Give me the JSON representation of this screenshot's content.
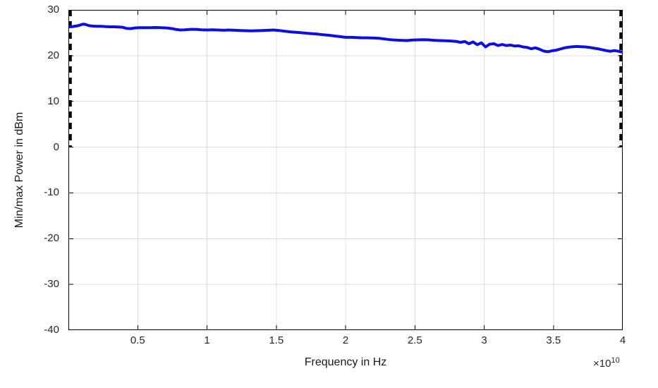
{
  "figure": {
    "background": "#ffffff"
  },
  "chart_data": {
    "type": "line",
    "title": "",
    "xlabel": "Frequency in Hz",
    "ylabel": "Min/max Power in dBm",
    "x_multiplier": {
      "base": "×10",
      "exponent": "10"
    },
    "x_units_note": "x values are in units of 1e10 Hz",
    "xlim": [
      0,
      4
    ],
    "ylim": [
      -40,
      30
    ],
    "xticks": [
      0.5,
      1,
      1.5,
      2,
      2.5,
      3,
      3.5,
      4
    ],
    "xtick_labels": [
      "0.5",
      "1",
      "1.5",
      "2",
      "2.5",
      "3",
      "3.5",
      "4"
    ],
    "yticks": [
      30,
      20,
      10,
      0,
      -10,
      -20,
      -30,
      -40
    ],
    "ytick_labels": [
      "30",
      "20",
      "10",
      "0",
      "-10",
      "-20",
      "-30",
      "-40"
    ],
    "grid": true,
    "legend": null,
    "colors": {
      "line": "#0D0DE8",
      "grid": "#DCDCDC",
      "axis": "#000000",
      "text": "#262626"
    },
    "markers": [
      {
        "type": "vline",
        "x": 0.0,
        "y_from": 0,
        "y_to": 30,
        "style": "dashed",
        "color": "#000000"
      },
      {
        "type": "vline",
        "x": 4.0,
        "y_from": 0,
        "y_to": 30,
        "style": "dashed",
        "color": "#000000"
      }
    ],
    "series": [
      {
        "name": "Min/max power",
        "color": "#0D0DE8",
        "x": [
          0.01,
          0.03,
          0.05,
          0.07,
          0.09,
          0.11,
          0.13,
          0.15,
          0.18,
          0.21,
          0.24,
          0.27,
          0.3,
          0.33,
          0.36,
          0.39,
          0.42,
          0.45,
          0.48,
          0.51,
          0.55,
          0.59,
          0.63,
          0.67,
          0.71,
          0.75,
          0.78,
          0.81,
          0.84,
          0.88,
          0.92,
          0.96,
          1.0,
          1.04,
          1.08,
          1.12,
          1.16,
          1.2,
          1.24,
          1.28,
          1.32,
          1.36,
          1.4,
          1.44,
          1.48,
          1.52,
          1.56,
          1.6,
          1.64,
          1.68,
          1.72,
          1.76,
          1.8,
          1.84,
          1.88,
          1.92,
          1.96,
          2.0,
          2.04,
          2.08,
          2.12,
          2.16,
          2.2,
          2.24,
          2.28,
          2.32,
          2.36,
          2.4,
          2.44,
          2.48,
          2.52,
          2.56,
          2.6,
          2.64,
          2.68,
          2.72,
          2.76,
          2.8,
          2.83,
          2.86,
          2.89,
          2.92,
          2.95,
          2.98,
          3.01,
          3.04,
          3.07,
          3.1,
          3.13,
          3.16,
          3.19,
          3.22,
          3.25,
          3.28,
          3.31,
          3.34,
          3.37,
          3.4,
          3.43,
          3.46,
          3.49,
          3.52,
          3.55,
          3.58,
          3.61,
          3.64,
          3.67,
          3.7,
          3.73,
          3.76,
          3.79,
          3.82,
          3.85,
          3.88,
          3.91,
          3.94,
          3.97,
          4.0
        ],
        "y": [
          26.3,
          26.35,
          26.45,
          26.55,
          26.75,
          26.9,
          26.75,
          26.55,
          26.45,
          26.4,
          26.4,
          26.35,
          26.3,
          26.3,
          26.25,
          26.2,
          25.95,
          25.9,
          26.05,
          26.1,
          26.1,
          26.1,
          26.15,
          26.1,
          26.05,
          25.9,
          25.7,
          25.6,
          25.65,
          25.75,
          25.75,
          25.65,
          25.6,
          25.65,
          25.6,
          25.55,
          25.6,
          25.55,
          25.5,
          25.45,
          25.4,
          25.45,
          25.5,
          25.55,
          25.6,
          25.5,
          25.35,
          25.2,
          25.1,
          25.0,
          24.9,
          24.8,
          24.7,
          24.55,
          24.45,
          24.3,
          24.15,
          24.0,
          24.0,
          23.95,
          23.9,
          23.9,
          23.85,
          23.8,
          23.65,
          23.5,
          23.4,
          23.35,
          23.3,
          23.4,
          23.45,
          23.5,
          23.45,
          23.35,
          23.3,
          23.25,
          23.2,
          23.1,
          22.9,
          23.1,
          22.6,
          23.0,
          22.4,
          22.8,
          21.9,
          22.5,
          22.6,
          22.2,
          22.45,
          22.2,
          22.3,
          22.1,
          22.15,
          21.9,
          21.8,
          21.5,
          21.7,
          21.4,
          21.0,
          20.85,
          21.05,
          21.2,
          21.45,
          21.7,
          21.85,
          21.95,
          22.0,
          21.95,
          21.9,
          21.8,
          21.65,
          21.5,
          21.3,
          21.1,
          20.95,
          21.1,
          20.95,
          20.75
        ]
      }
    ]
  }
}
